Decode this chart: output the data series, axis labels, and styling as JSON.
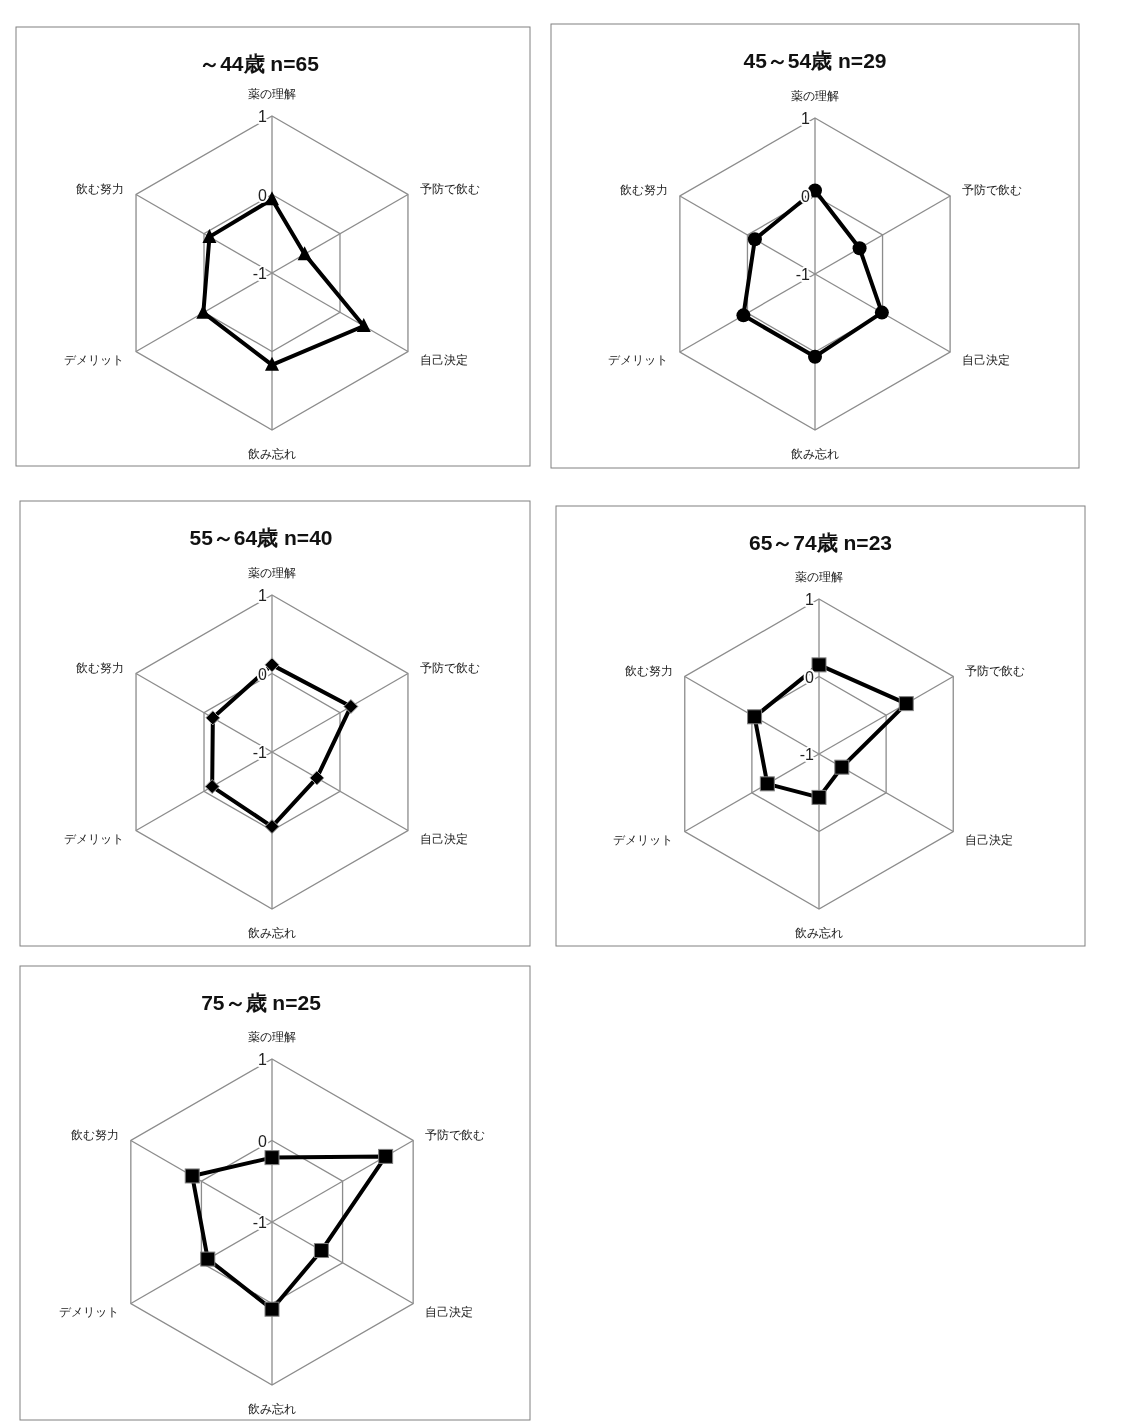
{
  "chart_data": [
    {
      "type": "radar",
      "title": "～44歳 n=65",
      "categories": [
        "薬の理解",
        "予防で飲む",
        "自己決定",
        "飲み忘れ",
        "デメリット",
        "飲む努力"
      ],
      "ylim": [
        -1,
        1
      ],
      "yticks": [
        -1,
        0,
        1
      ],
      "grid": true,
      "marker": "triangle",
      "line_style": "solid",
      "series": [
        {
          "color": "#000000",
          "values": [
            -0.06,
            -0.52,
            0.35,
            0.17,
            0.01,
            -0.08
          ]
        }
      ]
    },
    {
      "type": "radar",
      "title": "45～54歳 n=29",
      "categories": [
        "薬の理解",
        "予防で飲む",
        "自己決定",
        "飲み忘れ",
        "デメリット",
        "飲む努力"
      ],
      "ylim": [
        -1,
        1
      ],
      "yticks": [
        -1,
        0,
        1
      ],
      "grid": true,
      "marker": "circle",
      "line_style": "solid",
      "series": [
        {
          "color": "#000000",
          "values": [
            0.07,
            -0.34,
            -0.01,
            0.06,
            0.06,
            -0.11
          ]
        }
      ]
    },
    {
      "type": "radar",
      "title": "55～64歳 n=40",
      "categories": [
        "薬の理解",
        "予防で飲む",
        "自己決定",
        "飲み忘れ",
        "デメリット",
        "飲む努力"
      ],
      "ylim": [
        -1,
        1
      ],
      "yticks": [
        -1,
        0,
        1
      ],
      "grid": true,
      "marker": "diamond",
      "line_style": "solid",
      "series": [
        {
          "color": "#000000",
          "values": [
            0.11,
            0.16,
            -0.34,
            -0.05,
            -0.12,
            -0.13
          ]
        }
      ]
    },
    {
      "type": "radar",
      "title": "65～74歳 n=23",
      "categories": [
        "薬の理解",
        "予防で飲む",
        "自己決定",
        "飲み忘れ",
        "デメリット",
        "飲む努力"
      ],
      "ylim": [
        -1,
        1
      ],
      "yticks": [
        -1,
        0,
        1
      ],
      "grid": true,
      "marker": "square",
      "line_style": "solid",
      "series": [
        {
          "color": "#000000",
          "values": [
            0.15,
            0.3,
            -0.66,
            -0.44,
            -0.23,
            -0.04
          ]
        }
      ]
    },
    {
      "type": "radar",
      "title": "75～歳 n=25",
      "categories": [
        "薬の理解",
        "予防で飲む",
        "自己決定",
        "飲み忘れ",
        "デメリット",
        "飲む努力"
      ],
      "ylim": [
        -1,
        1
      ],
      "yticks": [
        -1,
        0,
        1
      ],
      "grid": true,
      "marker": "square",
      "line_style": "solid",
      "series": [
        {
          "color": "#000000",
          "values": [
            -0.21,
            0.61,
            -0.3,
            0.07,
            -0.09,
            0.13
          ]
        }
      ]
    }
  ]
}
